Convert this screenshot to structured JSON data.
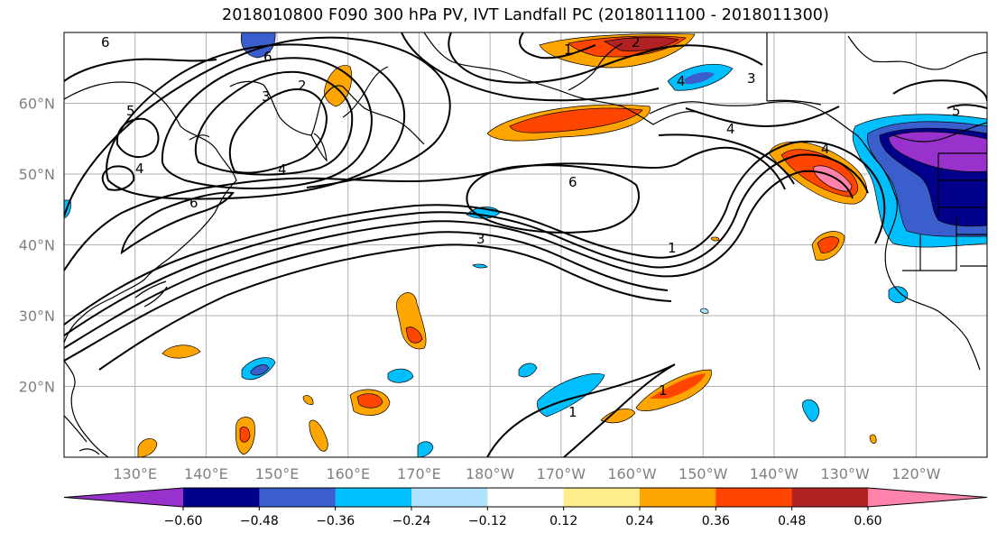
{
  "title": "2018010800 F090 300 hPa PV, IVT Landfall PC (2018011100 - 2018011300)",
  "map": {
    "extent_lon": [
      120,
      250
    ],
    "extent_lat": [
      10,
      70
    ],
    "latitude_labels": [
      "20°N",
      "30°N",
      "40°N",
      "50°N",
      "60°N"
    ],
    "latitude_values": [
      20,
      30,
      40,
      50,
      60
    ],
    "longitude_labels": [
      "130°E",
      "140°E",
      "150°E",
      "160°E",
      "170°E",
      "180°W",
      "170°W",
      "160°W",
      "150°W",
      "140°W",
      "130°W",
      "120°W"
    ],
    "longitude_values": [
      130,
      140,
      150,
      160,
      170,
      180,
      190,
      200,
      210,
      220,
      230,
      240
    ],
    "contour_labels": [
      "1",
      "2",
      "3",
      "4",
      "5",
      "6"
    ],
    "gridlines": true
  },
  "colorbar": {
    "tick_labels": [
      "−0.60",
      "−0.48",
      "−0.36",
      "−0.24",
      "−0.12",
      "0.12",
      "0.24",
      "0.36",
      "0.48",
      "0.60"
    ],
    "colors": [
      "#9932cc",
      "#00008b",
      "#3a5fcd",
      "#00bfff",
      "#b0e2ff",
      "#ffffff",
      "#ffec8b",
      "#ffa500",
      "#ff4500",
      "#b22222",
      "#ff82ab"
    ],
    "extend": "both"
  }
}
